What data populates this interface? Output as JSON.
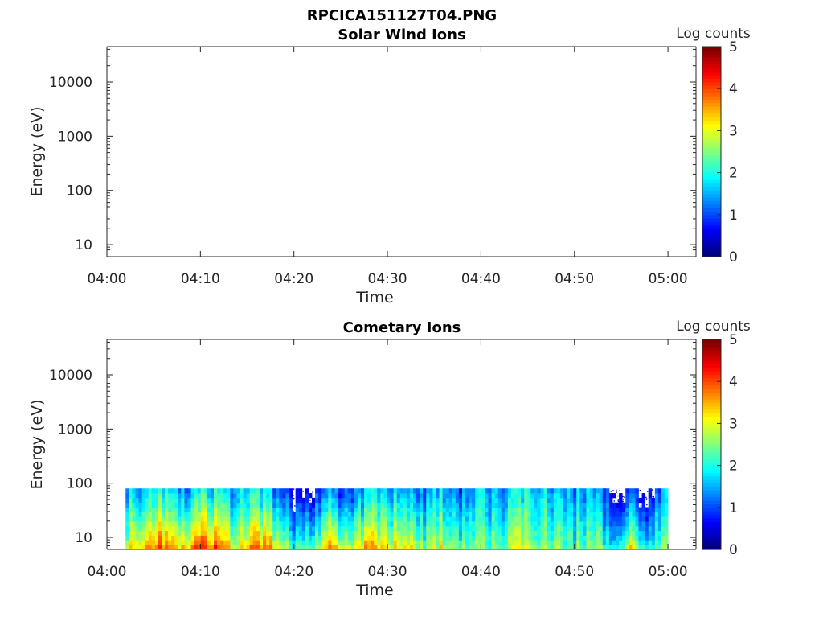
{
  "figure_title": "RPCICA151127T04.PNG",
  "chart_data": [
    {
      "type": "heatmap",
      "title": "Solar Wind Ions",
      "xlabel": "Time",
      "ylabel": "Energy (eV)",
      "x_range": [
        "04:00",
        "05:03"
      ],
      "x_ticks": [
        "04:00",
        "04:10",
        "04:20",
        "04:30",
        "04:40",
        "04:50",
        "05:00"
      ],
      "y_scale": "log",
      "y_range": [
        6,
        45000
      ],
      "y_ticks": [
        "10",
        "100",
        "1000",
        "10000"
      ],
      "colorbar": {
        "label": "Log counts",
        "min": 0,
        "max": 5,
        "ticks": [
          "0",
          "1",
          "2",
          "3",
          "4",
          "5"
        ],
        "colormap": "jet"
      },
      "data_coverage": null
    },
    {
      "type": "heatmap",
      "title": "Cometary Ions",
      "xlabel": "Time",
      "ylabel": "Energy (eV)",
      "x_range": [
        "04:00",
        "05:03"
      ],
      "x_ticks": [
        "04:00",
        "04:10",
        "04:20",
        "04:30",
        "04:40",
        "04:50",
        "05:00"
      ],
      "y_scale": "log",
      "y_range": [
        6,
        45000
      ],
      "y_ticks": [
        "10",
        "100",
        "1000",
        "10000"
      ],
      "colorbar": {
        "label": "Log counts",
        "min": 0,
        "max": 5,
        "ticks": [
          "0",
          "1",
          "2",
          "3",
          "4",
          "5"
        ],
        "colormap": "jet"
      },
      "data_coverage": {
        "time_start": "04:02",
        "time_end": "05:00",
        "energy_min_eV": 6,
        "energy_max_eV": 80
      },
      "mean_log_counts_by_time": {
        "times": [
          "04:02",
          "04:04",
          "04:06",
          "04:08",
          "04:10",
          "04:12",
          "04:14",
          "04:16",
          "04:18",
          "04:20",
          "04:22",
          "04:24",
          "04:26",
          "04:28",
          "04:30",
          "04:32",
          "04:34",
          "04:36",
          "04:38",
          "04:40",
          "04:42",
          "04:44",
          "04:46",
          "04:48",
          "04:50",
          "04:52",
          "04:54",
          "04:56",
          "04:58",
          "05:00"
        ],
        "low_energy": [
          3.0,
          3.6,
          3.9,
          3.4,
          4.0,
          3.8,
          2.8,
          3.9,
          3.3,
          2.0,
          2.3,
          3.9,
          2.3,
          3.6,
          3.0,
          3.3,
          2.5,
          3.0,
          2.3,
          2.5,
          2.2,
          3.0,
          2.4,
          2.6,
          2.2,
          2.6,
          2.0,
          3.0,
          1.8,
          2.8
        ],
        "high_energy": [
          1.5,
          1.7,
          2.0,
          1.4,
          1.9,
          1.8,
          1.4,
          1.9,
          1.3,
          0.3,
          0.5,
          1.6,
          0.5,
          1.8,
          1.5,
          1.6,
          1.2,
          1.7,
          1.0,
          1.6,
          1.2,
          1.8,
          1.6,
          1.6,
          1.4,
          1.5,
          0.6,
          0.8,
          0.3,
          1.8
        ]
      }
    }
  ]
}
